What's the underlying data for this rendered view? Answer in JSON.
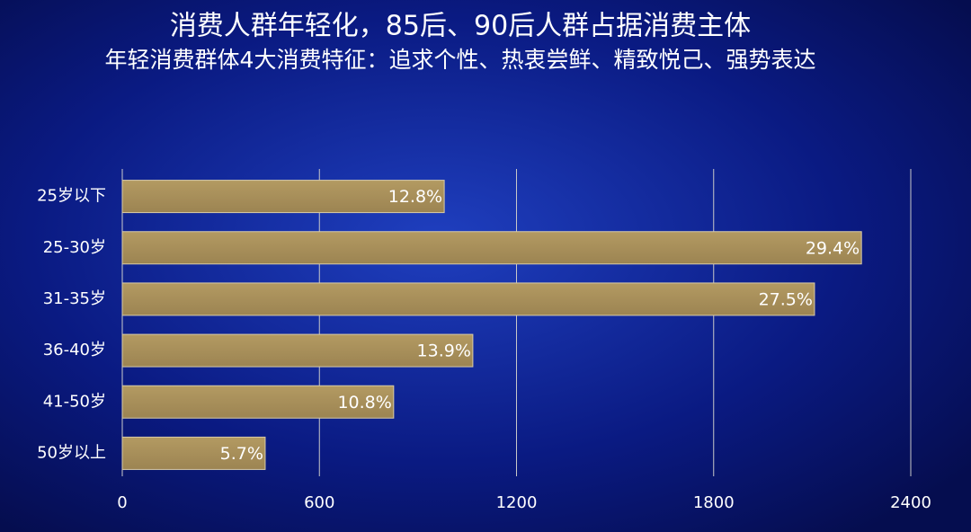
{
  "chart_data": {
    "type": "bar",
    "orientation": "horizontal",
    "title": "消费人群年轻化，85后、90后人群占据消费主体",
    "subtitle": "年轻消费群体4大消费特征：追求个性、热衷尝鲜、精致悦己、强势表达",
    "categories": [
      "25岁以下",
      "25-30岁",
      "31-35岁",
      "36-40岁",
      "41-50岁",
      "50岁以上"
    ],
    "values": [
      980,
      2250,
      2107,
      1067,
      826,
      435
    ],
    "bar_labels": [
      "12.8%",
      "29.4%",
      "27.5%",
      "13.9%",
      "10.8%",
      "5.7%"
    ],
    "color": "#a88f5c",
    "xlim": [
      0,
      2400
    ],
    "xticks": [
      0,
      600,
      1200,
      1800,
      2400
    ],
    "grid": true
  }
}
